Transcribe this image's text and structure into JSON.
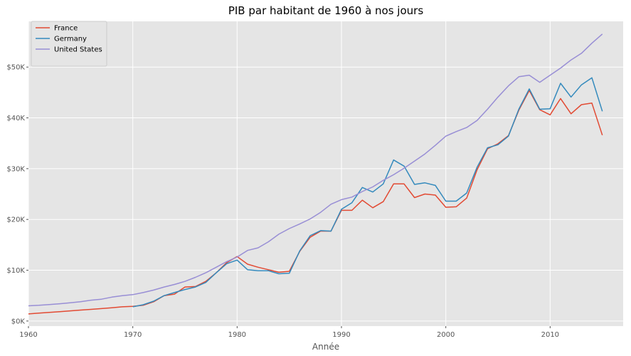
{
  "chart_data": {
    "type": "line",
    "title": "PIB par habitant de 1960 à nos jours",
    "xlabel": "Année",
    "ylabel": "",
    "xlim": [
      1960,
      2017
    ],
    "ylim": [
      -1000,
      59000
    ],
    "xticks": [
      1960,
      1970,
      1980,
      1990,
      2000,
      2010
    ],
    "yticks": [
      0,
      10000,
      20000,
      30000,
      40000,
      50000
    ],
    "ytick_labels": [
      "$0K",
      "$10K",
      "$20K",
      "$30K",
      "$40K",
      "$50K"
    ],
    "grid": true,
    "legend_position": "top-left",
    "background": "#e5e5e5",
    "series": [
      {
        "name": "France",
        "color": "#e24a33",
        "x": [
          1960,
          1961,
          1962,
          1963,
          1964,
          1965,
          1966,
          1967,
          1968,
          1969,
          1970,
          1971,
          1972,
          1973,
          1974,
          1975,
          1976,
          1977,
          1978,
          1979,
          1980,
          1981,
          1982,
          1983,
          1984,
          1985,
          1986,
          1987,
          1988,
          1989,
          1990,
          1991,
          1992,
          1993,
          1994,
          1995,
          1996,
          1997,
          1998,
          1999,
          2000,
          2001,
          2002,
          2003,
          2004,
          2005,
          2006,
          2007,
          2008,
          2009,
          2010,
          2011,
          2012,
          2013,
          2014,
          2015
        ],
        "y": [
          1400,
          1550,
          1700,
          1850,
          2000,
          2150,
          2300,
          2450,
          2600,
          2800,
          2900,
          3100,
          3800,
          5000,
          5300,
          6700,
          6800,
          7800,
          9500,
          11500,
          12700,
          11200,
          10600,
          10100,
          9600,
          9800,
          13700,
          16500,
          17700,
          17700,
          21800,
          21800,
          23800,
          22300,
          23500,
          27000,
          27000,
          24300,
          25000,
          24800,
          22400,
          22500,
          24200,
          29800,
          33900,
          34900,
          36500,
          41500,
          45400,
          41600,
          40600,
          43800,
          40800,
          42600,
          42900,
          36600
        ]
      },
      {
        "name": "Germany",
        "color": "#348abd",
        "x": [
          1970,
          1971,
          1972,
          1973,
          1974,
          1975,
          1976,
          1977,
          1978,
          1979,
          1980,
          1981,
          1982,
          1983,
          1984,
          1985,
          1986,
          1987,
          1988,
          1989,
          1990,
          1991,
          1992,
          1993,
          1994,
          1995,
          1996,
          1997,
          1998,
          1999,
          2000,
          2001,
          2002,
          2003,
          2004,
          2005,
          2006,
          2007,
          2008,
          2009,
          2010,
          2011,
          2012,
          2013,
          2014,
          2015
        ],
        "y": [
          2800,
          3200,
          3900,
          5000,
          5600,
          6200,
          6700,
          7600,
          9500,
          11300,
          12000,
          10100,
          9900,
          9900,
          9300,
          9400,
          13800,
          16800,
          17800,
          17700,
          22000,
          23300,
          26300,
          25400,
          27000,
          31700,
          30500,
          26900,
          27200,
          26700,
          23600,
          23600,
          25200,
          30300,
          34100,
          34700,
          36400,
          41700,
          45700,
          41700,
          41800,
          46800,
          44100,
          46500,
          47900,
          41300
        ]
      },
      {
        "name": "United States",
        "color": "#988ed5",
        "x": [
          1960,
          1961,
          1962,
          1963,
          1964,
          1965,
          1966,
          1967,
          1968,
          1969,
          1970,
          1971,
          1972,
          1973,
          1974,
          1975,
          1976,
          1977,
          1978,
          1979,
          1980,
          1981,
          1982,
          1983,
          1984,
          1985,
          1986,
          1987,
          1988,
          1989,
          1990,
          1991,
          1992,
          1993,
          1994,
          1995,
          1996,
          1997,
          1998,
          1999,
          2000,
          2001,
          2002,
          2003,
          2004,
          2005,
          2006,
          2007,
          2008,
          2009,
          2010,
          2011,
          2012,
          2013,
          2014,
          2015
        ],
        "y": [
          3000,
          3100,
          3250,
          3400,
          3600,
          3800,
          4100,
          4300,
          4700,
          5000,
          5200,
          5600,
          6100,
          6700,
          7200,
          7800,
          8600,
          9500,
          10600,
          11700,
          12600,
          13900,
          14400,
          15600,
          17100,
          18200,
          19100,
          20100,
          21400,
          23000,
          23900,
          24400,
          25500,
          26400,
          27700,
          28800,
          30100,
          31500,
          32900,
          34600,
          36400,
          37300,
          38100,
          39500,
          41700,
          44100,
          46300,
          48100,
          48400,
          47000,
          48400,
          49800,
          51400,
          52700,
          54700,
          56500
        ]
      }
    ]
  }
}
